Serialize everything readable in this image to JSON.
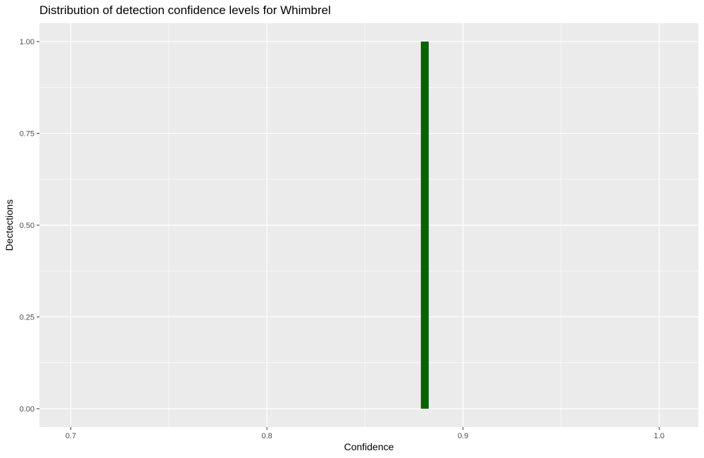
{
  "chart_data": {
    "type": "bar",
    "title": "Distribution of detection confidence levels for Whimbrel",
    "xlabel": "Confidence",
    "ylabel": "Dectections",
    "xlim": [
      0.684,
      1.02
    ],
    "ylim": [
      -0.05,
      1.05
    ],
    "x_ticks": [
      0.7,
      0.8,
      0.9,
      1.0
    ],
    "x_tick_labels": [
      "0.7",
      "0.8",
      "0.9",
      "1.0"
    ],
    "y_ticks": [
      0,
      0.25,
      0.5,
      0.75,
      1.0
    ],
    "y_tick_labels": [
      "0.00",
      "0.25",
      "0.50",
      "0.75",
      "1.00"
    ],
    "bin_width": 0.004,
    "bars": [
      {
        "x": 0.8805,
        "value": 1
      }
    ],
    "grid": true,
    "colors": {
      "bar": "#006400",
      "panel_background": "#ebebeb",
      "grid": "#ffffff",
      "axis_text": "#4d4d4d"
    }
  }
}
